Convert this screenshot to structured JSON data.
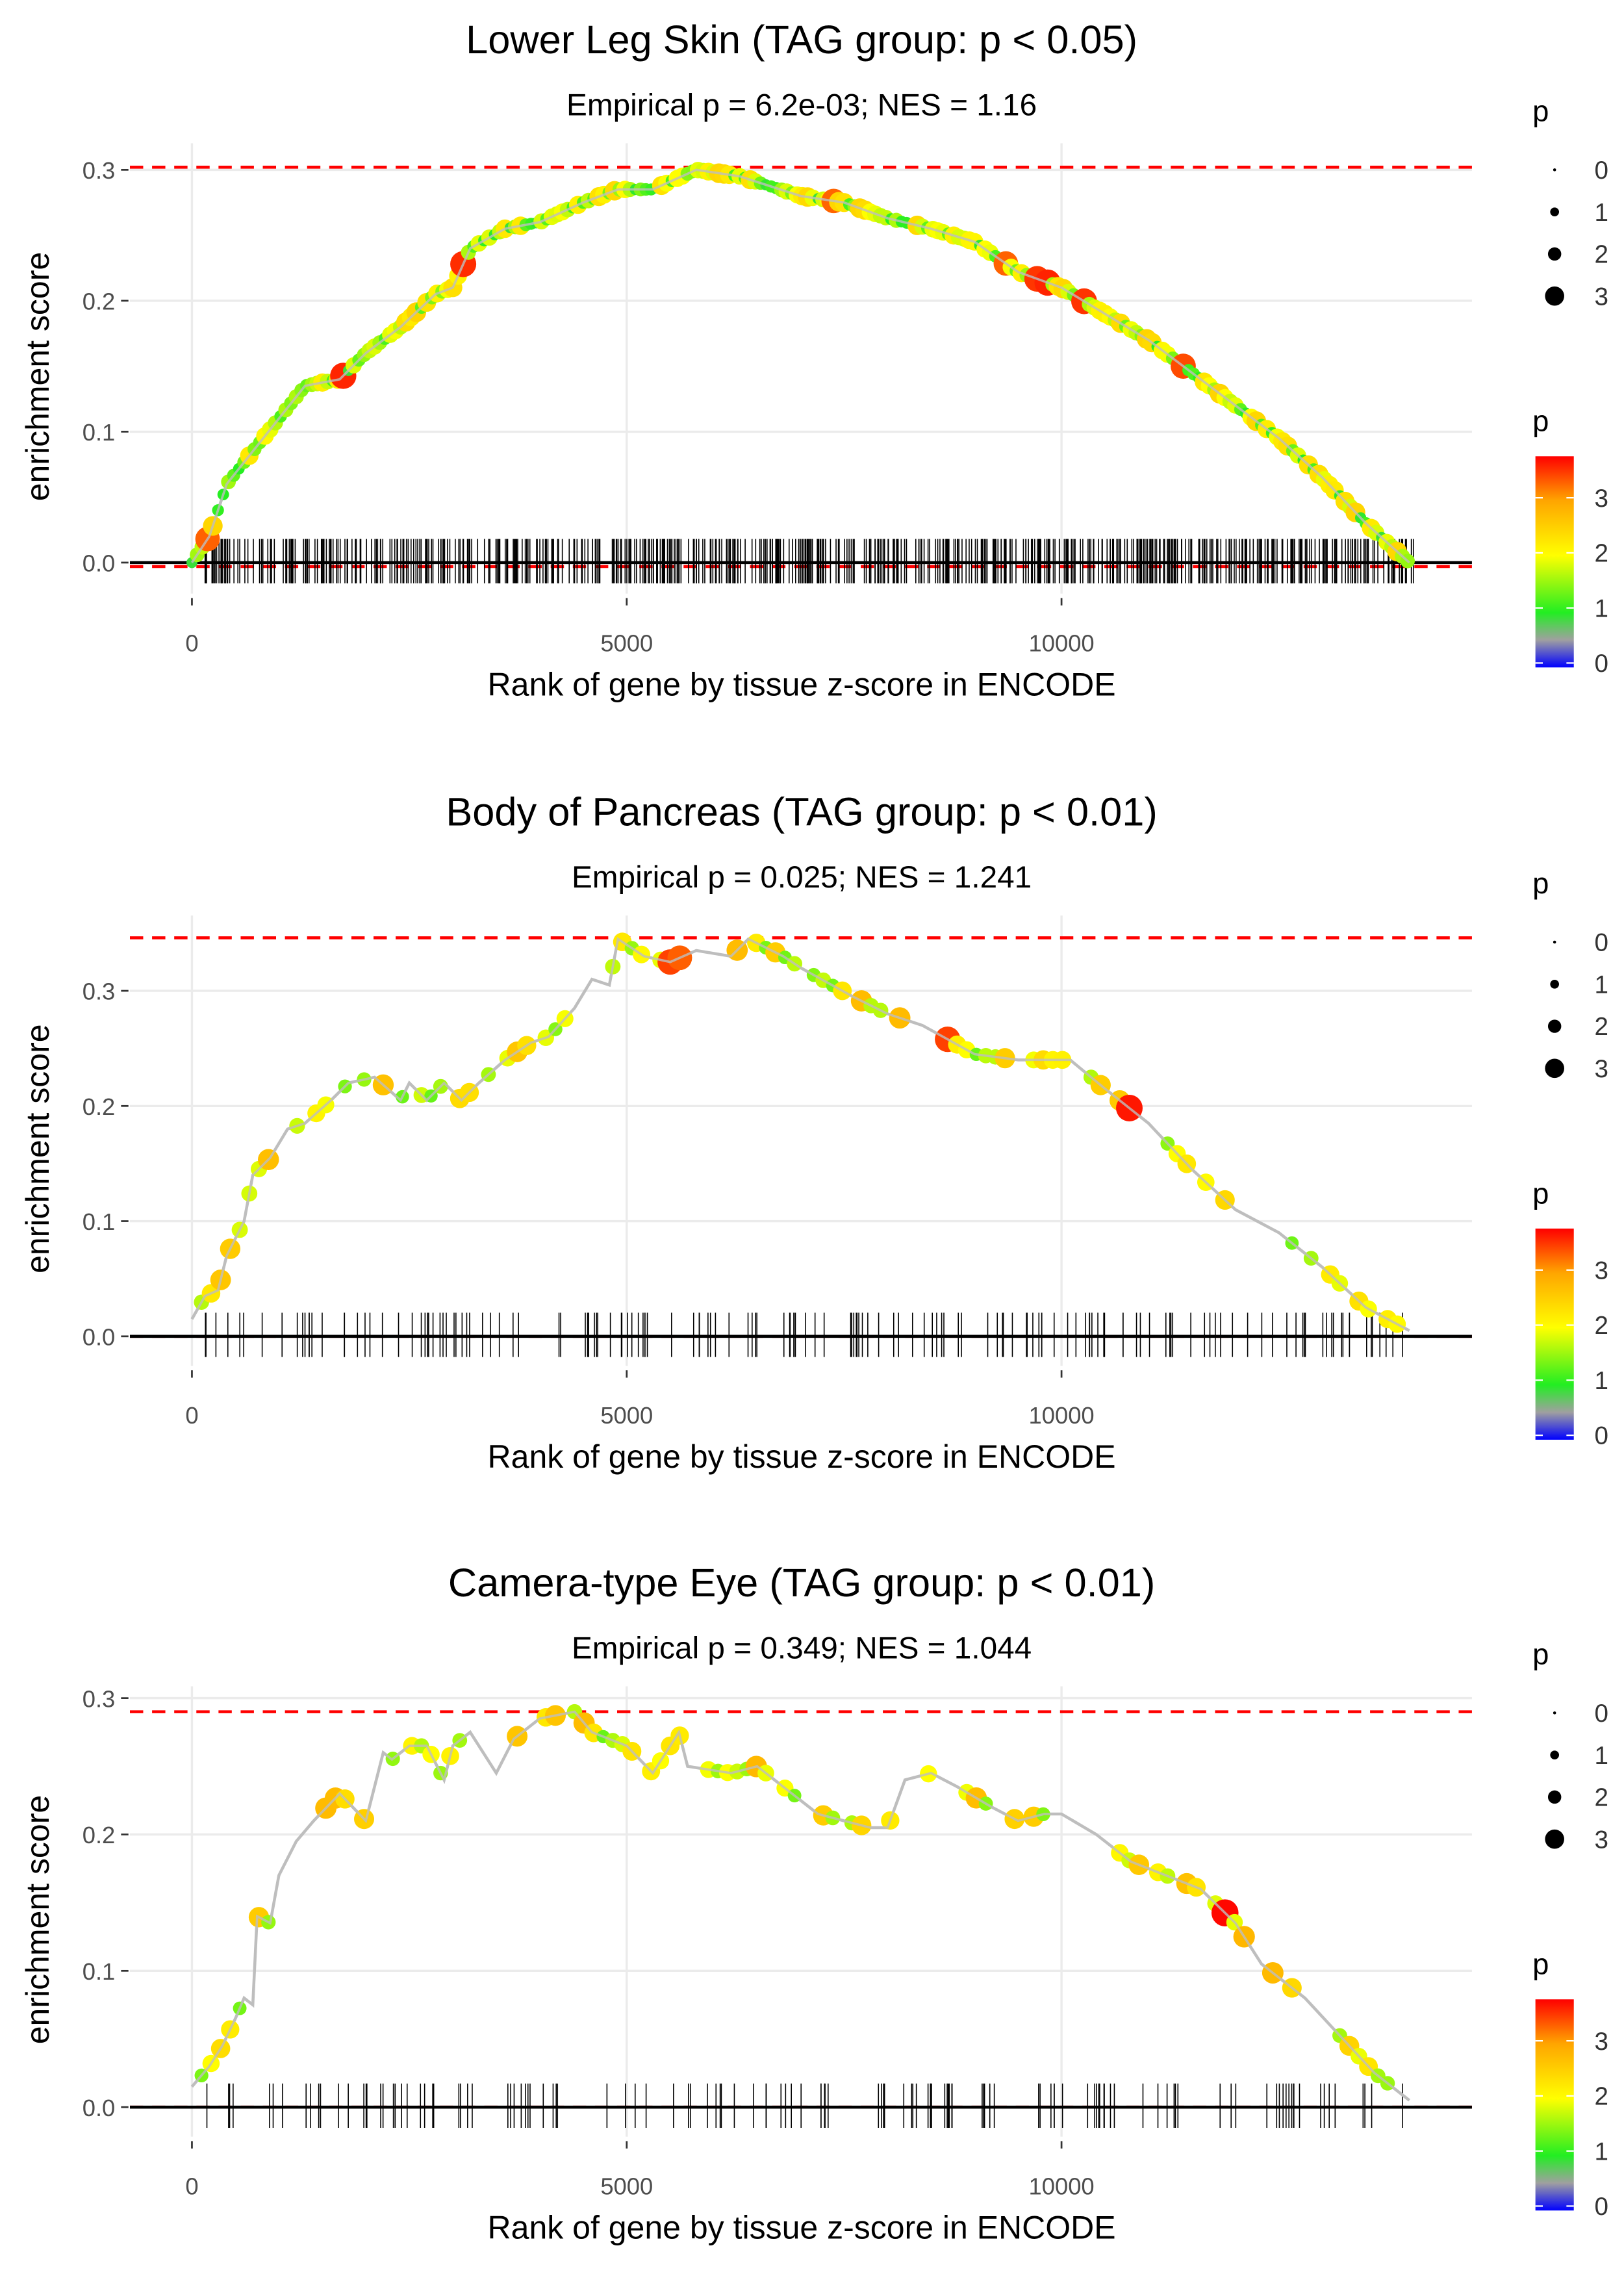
{
  "chart_data": [
    {
      "type": "line",
      "title": "Lower Leg Skin (TAG group: p < 0.05)",
      "subtitle": "Empirical p = 6.2e-03; NES = 1.16",
      "xlabel": "Rank of gene by tissue z-score in ENCODE",
      "ylabel": "enrichment score",
      "xticks": [
        "0",
        "5000",
        "10000"
      ],
      "yticks": [
        "0.0",
        "0.1",
        "0.2",
        "0.3"
      ],
      "xlim": [
        -700,
        14800
      ],
      "ylim": [
        -0.02,
        0.31
      ],
      "max_es": 0.302,
      "min_es": -0.003,
      "rug_density": "dense",
      "x": [
        0,
        200,
        400,
        700,
        1000,
        1300,
        1700,
        2000,
        2400,
        2800,
        3000,
        3200,
        3600,
        4000,
        4500,
        4900,
        5300,
        5800,
        6300,
        7000,
        7500,
        8000,
        8500,
        9000,
        9500,
        10000,
        10500,
        11000,
        11500,
        12000,
        12500,
        13000,
        13500,
        14000
      ],
      "y": [
        0,
        0.02,
        0.06,
        0.085,
        0.11,
        0.135,
        0.14,
        0.16,
        0.18,
        0.205,
        0.21,
        0.24,
        0.255,
        0.26,
        0.275,
        0.285,
        0.285,
        0.3,
        0.295,
        0.28,
        0.275,
        0.263,
        0.255,
        0.245,
        0.222,
        0.21,
        0.19,
        0.17,
        0.145,
        0.12,
        0.095,
        0.065,
        0.03,
        0.0
      ]
    },
    {
      "type": "line",
      "title": "Body of Pancreas (TAG group: p < 0.01)",
      "subtitle": "Empirical p = 0.025; NES = 1.241",
      "xlabel": "Rank of gene by tissue z-score in ENCODE",
      "ylabel": "enrichment score",
      "xticks": [
        "0",
        "5000",
        "10000"
      ],
      "yticks": [
        "0.0",
        "0.1",
        "0.2",
        "0.3"
      ],
      "xlim": [
        -700,
        14800
      ],
      "ylim": [
        -0.01,
        0.36
      ],
      "max_es": 0.346,
      "min_es": 0.0,
      "rug_density": "medium",
      "x": [
        0,
        150,
        300,
        400,
        600,
        700,
        900,
        1100,
        1300,
        1600,
        1800,
        2100,
        2400,
        2500,
        2700,
        2900,
        3100,
        3300,
        3600,
        3900,
        4100,
        4400,
        4600,
        4800,
        4900,
        5200,
        5500,
        5800,
        6200,
        6400,
        6800,
        7000,
        7600,
        8000,
        8400,
        9000,
        9500,
        10000,
        10100,
        10500,
        11000,
        11500,
        12000,
        12500,
        13000,
        13500,
        14000
      ],
      "y": [
        0.015,
        0.035,
        0.04,
        0.07,
        0.1,
        0.14,
        0.155,
        0.18,
        0.185,
        0.205,
        0.22,
        0.225,
        0.205,
        0.22,
        0.205,
        0.22,
        0.205,
        0.22,
        0.24,
        0.255,
        0.26,
        0.285,
        0.31,
        0.305,
        0.345,
        0.33,
        0.325,
        0.335,
        0.33,
        0.345,
        0.33,
        0.32,
        0.295,
        0.28,
        0.27,
        0.245,
        0.24,
        0.24,
        0.24,
        0.215,
        0.185,
        0.145,
        0.11,
        0.09,
        0.06,
        0.025,
        0.005
      ]
    },
    {
      "type": "line",
      "title": "Camera-type Eye (TAG group: p < 0.01)",
      "subtitle": "Empirical p = 0.349; NES = 1.044",
      "xlabel": "Rank of gene by tissue z-score in ENCODE",
      "ylabel": "enrichment score",
      "xticks": [
        "0",
        "5000",
        "10000"
      ],
      "yticks": [
        "0.0",
        "0.1",
        "0.2",
        "0.3"
      ],
      "xlim": [
        -700,
        14800
      ],
      "ylim": [
        -0.01,
        0.31
      ],
      "max_es": 0.29,
      "min_es": 0.0,
      "rug_density": "sparse",
      "x": [
        0,
        200,
        350,
        500,
        600,
        700,
        750,
        900,
        1000,
        1200,
        1400,
        1700,
        2000,
        2200,
        2300,
        2500,
        2700,
        2900,
        3000,
        3200,
        3500,
        3700,
        4000,
        4400,
        4600,
        5000,
        5300,
        5600,
        5700,
        6200,
        6500,
        6800,
        7200,
        7500,
        7800,
        8000,
        8200,
        8500,
        8800,
        9200,
        9500,
        9800,
        10000,
        10400,
        10800,
        11200,
        11600,
        12000,
        12300,
        12800,
        13600,
        14000
      ],
      "y": [
        0.015,
        0.03,
        0.045,
        0.065,
        0.08,
        0.075,
        0.14,
        0.135,
        0.17,
        0.195,
        0.21,
        0.23,
        0.21,
        0.26,
        0.255,
        0.265,
        0.265,
        0.24,
        0.265,
        0.275,
        0.245,
        0.27,
        0.285,
        0.29,
        0.275,
        0.265,
        0.245,
        0.275,
        0.25,
        0.245,
        0.25,
        0.235,
        0.215,
        0.21,
        0.205,
        0.205,
        0.24,
        0.245,
        0.235,
        0.22,
        0.21,
        0.215,
        0.215,
        0.2,
        0.18,
        0.17,
        0.16,
        0.135,
        0.105,
        0.08,
        0.025,
        0.005
      ]
    }
  ],
  "legend": {
    "size_title": "p",
    "size_levels": [
      "0",
      "1",
      "2",
      "3"
    ],
    "color_title": "p",
    "color_ticks": [
      "0",
      "1",
      "2",
      "3"
    ],
    "colors": {
      "0": "#0000ff",
      "0.5": "#a0a0a0",
      "1": "#22ee22",
      "2": "#ffff00",
      "3": "#ffa500",
      "3.8": "#ff0000"
    },
    "dashed_color": "#ff0000",
    "line_color": "#bebebe"
  }
}
